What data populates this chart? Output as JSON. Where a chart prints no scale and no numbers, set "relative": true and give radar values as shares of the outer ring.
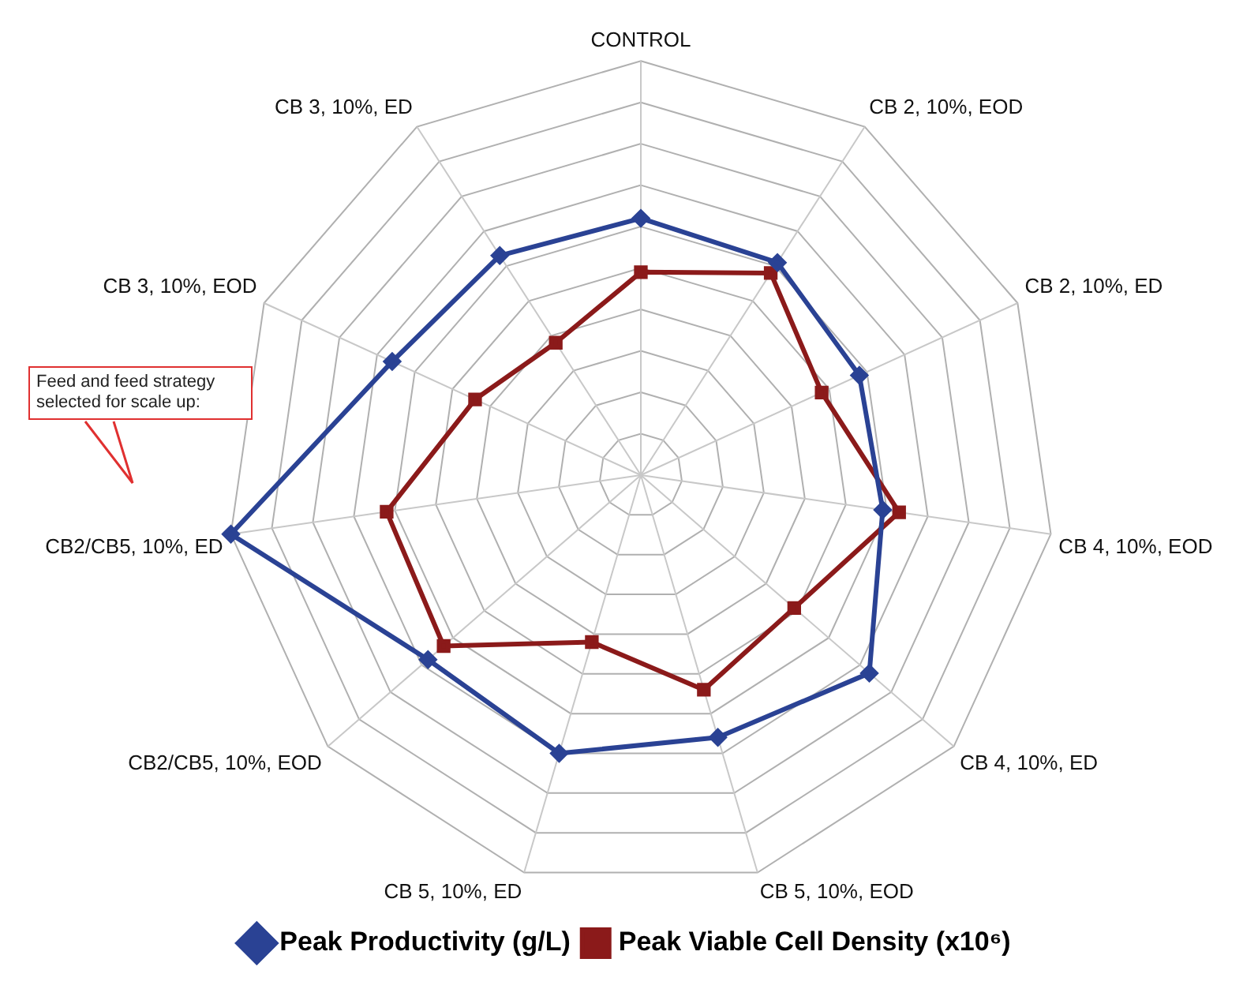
{
  "chart_data": {
    "type": "radar",
    "relative": true,
    "grid": true,
    "legend": "bottom",
    "categories": [
      "CONTROL",
      "CB 2, 10%, EOD",
      "CB 2, 10%, ED",
      "CB 4, 10%, EOD",
      "CB 4, 10%, ED",
      "CB 5, 10%, EOD",
      "CB 5, 10%, ED",
      "CB2/CB5, 10%, EOD",
      "CB2/CB5, 10%, ED",
      "CB 3, 10%, EOD",
      "CB 3, 10%, ED"
    ],
    "series": [
      {
        "name": "Peak Productivity (g/L)",
        "color": "#2a4294",
        "marker": "diamond",
        "values": [
          0.62,
          0.61,
          0.58,
          0.59,
          0.73,
          0.66,
          0.7,
          0.68,
          1.0,
          0.66,
          0.63
        ]
      },
      {
        "name": "Peak Viable Cell Density (x10⁶)",
        "color": "#8b1a1a",
        "marker": "square",
        "values": [
          0.49,
          0.58,
          0.48,
          0.63,
          0.49,
          0.54,
          0.42,
          0.63,
          0.62,
          0.44,
          0.38
        ]
      }
    ],
    "annotations": [
      "Feed and feed strategy selected for scale up:"
    ]
  }
}
